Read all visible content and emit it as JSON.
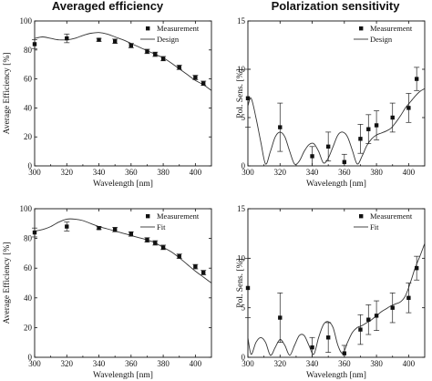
{
  "titles": {
    "left": "Averaged efficiency",
    "right": "Polarization sensitivity"
  },
  "chart_data": [
    {
      "id": "eff-design",
      "type": "line",
      "xlabel": "Wavelength [nm]",
      "ylabel": "Average Efficiency [%]",
      "xlim": [
        300,
        410
      ],
      "ylim": [
        0,
        100
      ],
      "xticks": [
        300,
        320,
        340,
        360,
        380,
        400
      ],
      "yticks": [
        0,
        20,
        40,
        60,
        80,
        100
      ],
      "legend": [
        "Measurement",
        "Design"
      ],
      "legend_position": "top-right",
      "measurement": {
        "x": [
          300,
          320,
          340,
          350,
          360,
          370,
          375,
          380,
          390,
          400,
          405
        ],
        "y": [
          84,
          88,
          87,
          86,
          83,
          79,
          77,
          74,
          68,
          61,
          57
        ],
        "err": [
          3,
          3,
          1,
          1.5,
          1.5,
          1.5,
          1.5,
          1.5,
          1.5,
          1.5,
          1.5
        ]
      },
      "model": {
        "x": [
          300,
          305,
          310,
          315,
          320,
          325,
          330,
          335,
          340,
          345,
          350,
          355,
          360,
          365,
          370,
          375,
          380,
          385,
          390,
          395,
          400,
          405,
          410
        ],
        "y": [
          88,
          89,
          88,
          87,
          87,
          88,
          90,
          91.5,
          92,
          91,
          89,
          87,
          84.5,
          82,
          79.5,
          77,
          74.5,
          71,
          67,
          63,
          59,
          56,
          52
        ]
      }
    },
    {
      "id": "pol-design",
      "type": "line",
      "xlabel": "Wavelength [nm]",
      "ylabel": "Pol. Sens. [%]",
      "xlim": [
        300,
        410
      ],
      "ylim": [
        0,
        15
      ],
      "xticks": [
        300,
        320,
        340,
        360,
        380,
        400
      ],
      "yticks": [
        0,
        5,
        10,
        15
      ],
      "legend": [
        "Measurement",
        "Design"
      ],
      "legend_position": "top-right",
      "measurement": {
        "x": [
          300,
          320,
          340,
          350,
          360,
          370,
          375,
          380,
          390,
          400,
          405
        ],
        "y": [
          7,
          4,
          1,
          2,
          0.4,
          2.8,
          3.8,
          4.2,
          5,
          6,
          9
        ],
        "err": [
          3,
          2.5,
          1,
          1.5,
          0.8,
          1.5,
          1.5,
          1.5,
          1.5,
          1.5,
          1.2
        ]
      },
      "model": {
        "x": [
          300,
          302,
          305,
          308,
          311,
          314,
          317,
          320,
          323,
          326,
          329,
          332,
          335,
          338,
          341,
          344,
          347,
          350,
          353,
          356,
          359,
          362,
          365,
          368,
          371,
          374,
          377,
          380,
          383,
          386,
          389,
          392,
          395,
          398,
          401,
          404,
          407,
          410
        ],
        "y": [
          6.2,
          7,
          5,
          2.5,
          0.2,
          1.5,
          3,
          3.5,
          3,
          1.5,
          0.2,
          0.5,
          1.5,
          2.2,
          2.3,
          1.5,
          0.3,
          0.8,
          2,
          3.2,
          3.5,
          3,
          1.6,
          0.2,
          1,
          2.1,
          2.8,
          3.2,
          3.4,
          3.6,
          3.9,
          4.5,
          5.2,
          6,
          6.6,
          7.2,
          7.7,
          8
        ]
      }
    },
    {
      "id": "eff-fit",
      "type": "line",
      "xlabel": "Wavelength [nm]",
      "ylabel": "Average Efficiency [%]",
      "xlim": [
        300,
        410
      ],
      "ylim": [
        0,
        100
      ],
      "xticks": [
        300,
        320,
        340,
        360,
        380,
        400
      ],
      "yticks": [
        0,
        20,
        40,
        60,
        80,
        100
      ],
      "legend": [
        "Measurement",
        "Fit"
      ],
      "legend_position": "top-right",
      "measurement": {
        "x": [
          300,
          320,
          340,
          350,
          360,
          370,
          375,
          380,
          390,
          400,
          405
        ],
        "y": [
          84,
          88,
          87,
          86,
          83,
          79,
          77,
          74,
          68,
          61,
          57
        ],
        "err": [
          3,
          3,
          1,
          1.5,
          1.5,
          1.5,
          1.5,
          1.5,
          1.5,
          1.5,
          1.5
        ]
      },
      "model": {
        "x": [
          300,
          305,
          310,
          315,
          320,
          325,
          330,
          335,
          340,
          345,
          350,
          355,
          360,
          365,
          370,
          375,
          380,
          385,
          390,
          395,
          400,
          405,
          410
        ],
        "y": [
          85,
          86,
          88,
          91,
          93,
          93,
          92,
          90,
          88,
          86.5,
          85,
          83.5,
          82,
          80.5,
          79,
          77,
          74,
          71,
          67,
          62.5,
          58,
          54,
          50
        ]
      }
    },
    {
      "id": "pol-fit",
      "type": "line",
      "xlabel": "Wavelength [nm]",
      "ylabel": "Pol. Sens. [%]",
      "xlim": [
        300,
        410
      ],
      "ylim": [
        0,
        15
      ],
      "xticks": [
        300,
        320,
        340,
        360,
        380,
        400
      ],
      "yticks": [
        0,
        5,
        10,
        15
      ],
      "legend": [
        "Measurement",
        "Fit"
      ],
      "legend_position": "top-right",
      "measurement": {
        "x": [
          300,
          320,
          340,
          350,
          360,
          370,
          375,
          380,
          390,
          400,
          405
        ],
        "y": [
          7,
          4,
          1,
          2,
          0.4,
          2.8,
          3.8,
          4.2,
          5,
          6,
          9
        ],
        "err": [
          3,
          2.5,
          1,
          1.5,
          0.8,
          1.5,
          1.5,
          1.5,
          1.5,
          1.5,
          1.2
        ]
      },
      "model": {
        "x": [
          300,
          302,
          305,
          308,
          311,
          314,
          317,
          320,
          323,
          326,
          329,
          332,
          335,
          338,
          341,
          344,
          347,
          350,
          353,
          356,
          359,
          362,
          365,
          368,
          371,
          374,
          377,
          380,
          383,
          386,
          389,
          392,
          395,
          398,
          401,
          404,
          407,
          410
        ],
        "y": [
          2,
          0.3,
          1.5,
          2,
          1.5,
          0.2,
          1,
          1.8,
          1.2,
          0.2,
          1.2,
          2.2,
          2.2,
          1.2,
          0.3,
          2,
          3.3,
          3.6,
          3,
          1.2,
          0.4,
          1.5,
          2.5,
          3,
          3.2,
          3.5,
          3.8,
          4.2,
          4.6,
          4.9,
          5.2,
          5.4,
          5.6,
          6.2,
          7.5,
          9,
          10.2,
          11.5
        ]
      }
    }
  ]
}
